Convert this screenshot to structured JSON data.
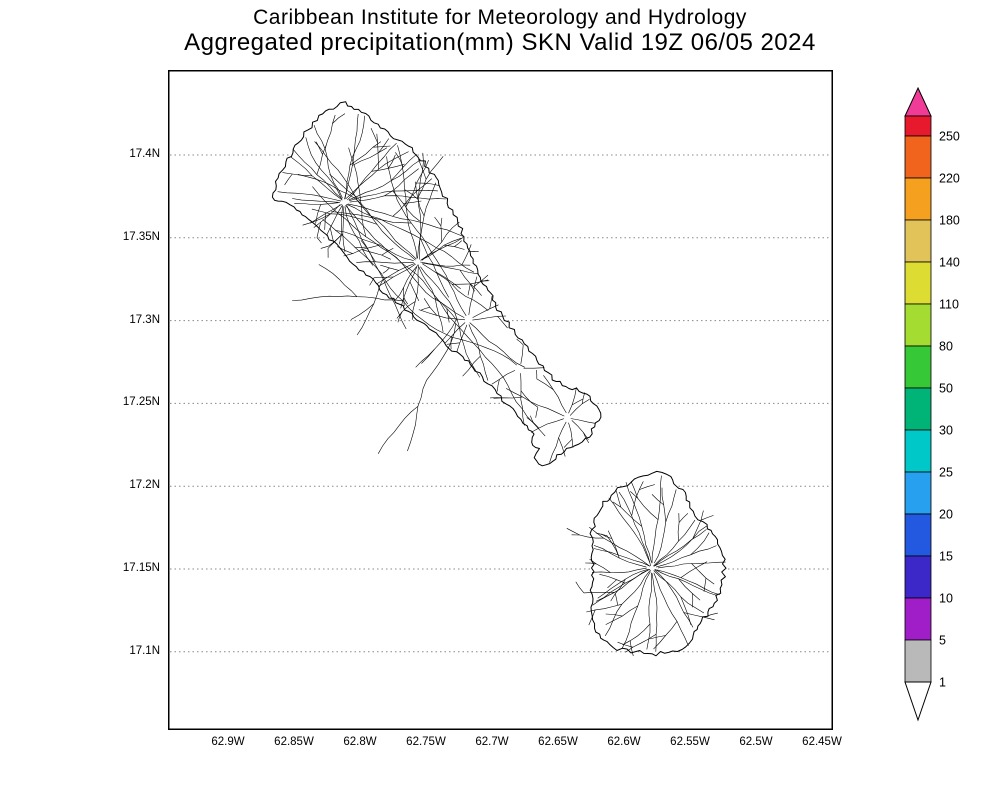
{
  "header": {
    "line1": "Caribbean Institute for Meteorology and Hydrology",
    "line2": "Aggregated precipitation(mm) SKN Valid 19Z 06/05 2024"
  },
  "axes": {
    "lat_labels": [
      "17.4N",
      "17.35N",
      "17.3N",
      "17.25N",
      "17.2N",
      "17.15N",
      "17.1N"
    ],
    "lon_labels": [
      "62.9W",
      "62.85W",
      "62.8W",
      "62.75W",
      "62.7W",
      "62.65W",
      "62.6W",
      "62.55W",
      "62.5W",
      "62.45W"
    ]
  },
  "colorbar": {
    "levels_top_to_bottom": [
      "250",
      "220",
      "180",
      "140",
      "110",
      "80",
      "50",
      "30",
      "25",
      "20",
      "15",
      "10",
      "5",
      "1"
    ],
    "segment_colors_top_to_bottom": [
      "#e6192d",
      "#f0641e",
      "#f5a01e",
      "#e1c35a",
      "#dcdc32",
      "#a5dc32",
      "#37c837",
      "#00b478",
      "#00c8c8",
      "#28a0f0",
      "#2358e1",
      "#3c28c8",
      "#a01ec8",
      "#b9b9b9"
    ],
    "over_arrow_color": "#f03c96",
    "under_arrow_color": "#ffffff"
  },
  "chart_data": {
    "type": "map",
    "institution": "Caribbean Institute for Meteorology and Hydrology",
    "title": "Aggregated precipitation(mm) SKN Valid 19Z 06/05 2024",
    "variable": "Aggregated precipitation (mm)",
    "region_code": "SKN",
    "valid_time": "19Z 06/05 2024",
    "lat_ticks": [
      "17.4N",
      "17.35N",
      "17.3N",
      "17.25N",
      "17.2N",
      "17.15N",
      "17.1N"
    ],
    "lon_ticks": [
      "62.9W",
      "62.85W",
      "62.8W",
      "62.75W",
      "62.7W",
      "62.65W",
      "62.6W",
      "62.55W",
      "62.5W",
      "62.45W"
    ],
    "colorbar_levels_mm": [
      1,
      5,
      10,
      15,
      20,
      25,
      30,
      50,
      80,
      110,
      140,
      180,
      220,
      250
    ],
    "depicted_features": [
      "St. Kitts coastline with interior stream/drainage network",
      "Nevis coastline with radial stream/drainage network",
      "dotted latitude gridlines"
    ],
    "precipitation_shading": "none visible; island interiors uncolored (below 1 mm)"
  }
}
